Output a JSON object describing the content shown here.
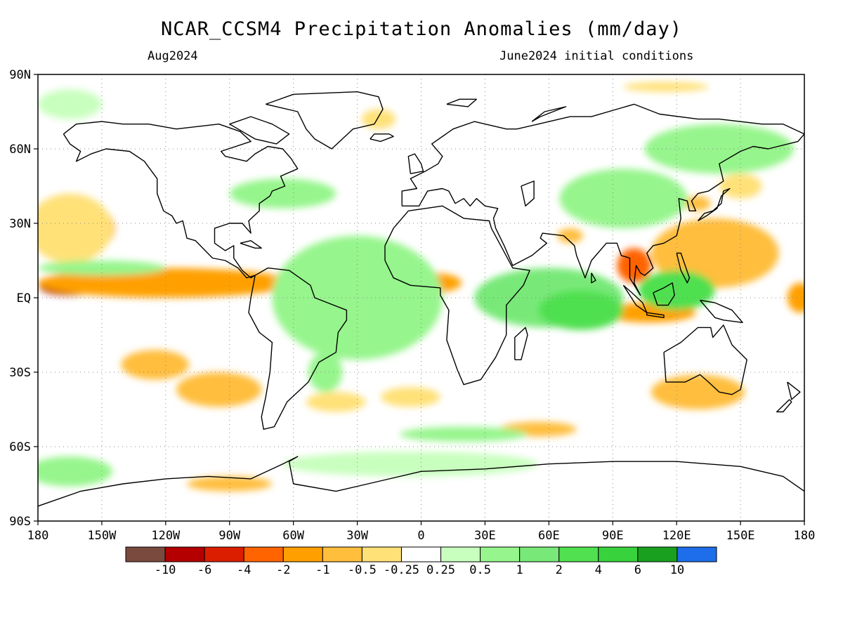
{
  "title": "NCAR_CCSM4 Precipitation Anomalies (mm/day)",
  "subtitle_left": "Aug2024",
  "subtitle_right": "June2024 initial conditions",
  "map": {
    "projection": "equirectangular",
    "lon_range": [
      -180,
      180
    ],
    "lat_range": [
      -90,
      90
    ],
    "grid": true,
    "coastlines": true,
    "lat_labels": [
      "90N",
      "60N",
      "30N",
      "EQ",
      "30S",
      "60S",
      "90S"
    ],
    "lat_values": [
      90,
      60,
      30,
      0,
      -30,
      -60,
      -90
    ],
    "lon_labels": [
      "180",
      "150W",
      "120W",
      "90W",
      "60W",
      "30W",
      "0",
      "30E",
      "60E",
      "90E",
      "120E",
      "150E",
      "180"
    ],
    "lon_values": [
      -180,
      -150,
      -120,
      -90,
      -60,
      -30,
      0,
      30,
      60,
      90,
      120,
      150,
      180
    ]
  },
  "colorbar": {
    "colors": [
      "#7a4a3f",
      "#b40000",
      "#dc1e00",
      "#ff6400",
      "#ffa000",
      "#ffbe3c",
      "#ffe178",
      "#ffffff",
      "#c8ffbe",
      "#96f58c",
      "#78e978",
      "#50e050",
      "#37d23c",
      "#19a01e",
      "#1e6eeb"
    ],
    "tick_labels": [
      "-10",
      "-6",
      "-4",
      "-2",
      "-1",
      "-0.5",
      "-0.25",
      "0.25",
      "0.5",
      "1",
      "2",
      "4",
      "6",
      "10"
    ]
  },
  "anomaly_regions": [
    {
      "lon": -140,
      "lat": 5,
      "rx": 40,
      "ry": 3.5,
      "cls": 2
    },
    {
      "lon": -165,
      "lat": 4,
      "rx": 14,
      "ry": 3,
      "cls": 1
    },
    {
      "lon": -95,
      "lat": 6,
      "rx": 22,
      "ry": 3,
      "cls": 3
    },
    {
      "lon": -120,
      "lat": 6,
      "rx": 60,
      "ry": 6,
      "cls": 4
    },
    {
      "lon": -20,
      "lat": 10,
      "rx": 12,
      "ry": 3,
      "cls": 2
    },
    {
      "lon": 5,
      "lat": 6,
      "rx": 14,
      "ry": 4,
      "cls": 4
    },
    {
      "lon": -35,
      "lat": 7,
      "rx": 22,
      "ry": 5,
      "cls": 5
    },
    {
      "lon": -160,
      "lat": 28,
      "rx": 16,
      "ry": 10,
      "cls": 4
    },
    {
      "lon": -165,
      "lat": 28,
      "rx": 20,
      "ry": 14,
      "cls": 6
    },
    {
      "lon": -125,
      "lat": -27,
      "rx": 16,
      "ry": 6,
      "cls": 5
    },
    {
      "lon": -95,
      "lat": -37,
      "rx": 20,
      "ry": 7,
      "cls": 5
    },
    {
      "lon": -60,
      "lat": 10,
      "rx": 6,
      "ry": 4,
      "cls": 3
    },
    {
      "lon": -60,
      "lat": 5,
      "rx": 10,
      "ry": 7,
      "cls": 5
    },
    {
      "lon": -40,
      "lat": -42,
      "rx": 14,
      "ry": 4,
      "cls": 6
    },
    {
      "lon": -5,
      "lat": -40,
      "rx": 14,
      "ry": 4,
      "cls": 6
    },
    {
      "lon": 55,
      "lat": -53,
      "rx": 18,
      "ry": 3,
      "cls": 5
    },
    {
      "lon": 137,
      "lat": 17,
      "rx": 22,
      "ry": 10,
      "cls": 4
    },
    {
      "lon": 138,
      "lat": 18,
      "rx": 30,
      "ry": 14,
      "cls": 5
    },
    {
      "lon": 100,
      "lat": 13,
      "rx": 8,
      "ry": 7,
      "cls": 3
    },
    {
      "lon": 107,
      "lat": -6,
      "rx": 22,
      "ry": 4,
      "cls": 4
    },
    {
      "lon": 130,
      "lat": -38,
      "rx": 22,
      "ry": 7,
      "cls": 5
    },
    {
      "lon": 178,
      "lat": 0,
      "rx": 6,
      "ry": 6,
      "cls": 4
    },
    {
      "lon": 70,
      "lat": 25,
      "rx": 6,
      "ry": 3,
      "cls": 5
    },
    {
      "lon": 150,
      "lat": 45,
      "rx": 10,
      "ry": 5,
      "cls": 6
    },
    {
      "lon": 130,
      "lat": 38,
      "rx": 6,
      "ry": 3,
      "cls": 5
    },
    {
      "lon": -90,
      "lat": -75,
      "rx": 20,
      "ry": 3,
      "cls": 5
    },
    {
      "lon": -20,
      "lat": 72,
      "rx": 8,
      "ry": 4,
      "cls": 6
    },
    {
      "lon": 115,
      "lat": 85,
      "rx": 20,
      "ry": 2,
      "cls": 6
    },
    {
      "lon": -30,
      "lat": 0,
      "rx": 40,
      "ry": 25,
      "cls": 9
    },
    {
      "lon": 60,
      "lat": 0,
      "rx": 35,
      "ry": 12,
      "cls": 10
    },
    {
      "lon": 75,
      "lat": -5,
      "rx": 20,
      "ry": 8,
      "cls": 11
    },
    {
      "lon": 120,
      "lat": 3,
      "rx": 18,
      "ry": 8,
      "cls": 11
    },
    {
      "lon": 95,
      "lat": 40,
      "rx": 30,
      "ry": 12,
      "cls": 9
    },
    {
      "lon": 140,
      "lat": 60,
      "rx": 35,
      "ry": 10,
      "cls": 9
    },
    {
      "lon": -165,
      "lat": -70,
      "rx": 20,
      "ry": 6,
      "cls": 9
    },
    {
      "lon": -65,
      "lat": 42,
      "rx": 25,
      "ry": 6,
      "cls": 9
    },
    {
      "lon": -165,
      "lat": 78,
      "rx": 15,
      "ry": 6,
      "cls": 8
    },
    {
      "lon": -5,
      "lat": -67,
      "rx": 60,
      "ry": 5,
      "cls": 8
    },
    {
      "lon": -45,
      "lat": -30,
      "rx": 8,
      "ry": 8,
      "cls": 9
    },
    {
      "lon": -150,
      "lat": 12,
      "rx": 30,
      "ry": 3,
      "cls": 9
    },
    {
      "lon": 20,
      "lat": -55,
      "rx": 30,
      "ry": 3,
      "cls": 9
    }
  ],
  "coastlines": {
    "north_america": [
      [
        -168,
        66
      ],
      [
        -162,
        70
      ],
      [
        -150,
        71
      ],
      [
        -140,
        70
      ],
      [
        -128,
        70
      ],
      [
        -115,
        68
      ],
      [
        -95,
        70
      ],
      [
        -85,
        67
      ],
      [
        -80,
        63
      ],
      [
        -94,
        59
      ],
      [
        -92,
        57
      ],
      [
        -82,
        55
      ],
      [
        -78,
        58
      ],
      [
        -72,
        61
      ],
      [
        -65,
        60
      ],
      [
        -61,
        56
      ],
      [
        -58,
        52
      ],
      [
        -66,
        49
      ],
      [
        -64,
        45
      ],
      [
        -70,
        43
      ],
      [
        -71,
        41
      ],
      [
        -76,
        38
      ],
      [
        -76,
        35
      ],
      [
        -81,
        31
      ],
      [
        -80,
        26
      ],
      [
        -82,
        28
      ],
      [
        -84,
        30
      ],
      [
        -90,
        30
      ],
      [
        -97,
        28
      ],
      [
        -97,
        22
      ],
      [
        -92,
        19
      ],
      [
        -88,
        21
      ],
      [
        -88,
        16
      ],
      [
        -84,
        11
      ],
      [
        -80,
        8
      ],
      [
        -78,
        9
      ],
      [
        -82,
        8
      ],
      [
        -86,
        12
      ],
      [
        -92,
        15
      ],
      [
        -98,
        16
      ],
      [
        -106,
        23
      ],
      [
        -110,
        24
      ],
      [
        -112,
        31
      ],
      [
        -115,
        30
      ],
      [
        -117,
        33
      ],
      [
        -121,
        35
      ],
      [
        -124,
        42
      ],
      [
        -124,
        48
      ],
      [
        -130,
        55
      ],
      [
        -137,
        59
      ],
      [
        -148,
        60
      ],
      [
        -155,
        58
      ],
      [
        -162,
        55
      ],
      [
        -160,
        59
      ],
      [
        -165,
        62
      ],
      [
        -168,
        66
      ]
    ],
    "greenland": [
      [
        -73,
        78
      ],
      [
        -60,
        82
      ],
      [
        -30,
        83
      ],
      [
        -20,
        81
      ],
      [
        -18,
        76
      ],
      [
        -22,
        70
      ],
      [
        -32,
        68
      ],
      [
        -42,
        60
      ],
      [
        -50,
        64
      ],
      [
        -54,
        68
      ],
      [
        -58,
        75
      ],
      [
        -73,
        78
      ]
    ],
    "south_america": [
      [
        -78,
        9
      ],
      [
        -72,
        12
      ],
      [
        -62,
        11
      ],
      [
        -52,
        5
      ],
      [
        -50,
        0
      ],
      [
        -44,
        -2
      ],
      [
        -35,
        -5
      ],
      [
        -35,
        -9
      ],
      [
        -39,
        -14
      ],
      [
        -40,
        -22
      ],
      [
        -48,
        -26
      ],
      [
        -53,
        -34
      ],
      [
        -58,
        -38
      ],
      [
        -63,
        -42
      ],
      [
        -66,
        -47
      ],
      [
        -69,
        -52
      ],
      [
        -74,
        -53
      ],
      [
        -75,
        -48
      ],
      [
        -73,
        -40
      ],
      [
        -71,
        -30
      ],
      [
        -70,
        -18
      ],
      [
        -76,
        -14
      ],
      [
        -81,
        -6
      ],
      [
        -80,
        0
      ],
      [
        -78,
        9
      ]
    ],
    "africa": [
      [
        -17,
        15
      ],
      [
        -17,
        21
      ],
      [
        -13,
        28
      ],
      [
        -6,
        35
      ],
      [
        10,
        37
      ],
      [
        20,
        32
      ],
      [
        32,
        31
      ],
      [
        33,
        28
      ],
      [
        38,
        20
      ],
      [
        43,
        12
      ],
      [
        51,
        11
      ],
      [
        48,
        5
      ],
      [
        40,
        -3
      ],
      [
        40,
        -15
      ],
      [
        35,
        -24
      ],
      [
        28,
        -33
      ],
      [
        20,
        -35
      ],
      [
        17,
        -29
      ],
      [
        12,
        -17
      ],
      [
        13,
        -5
      ],
      [
        9,
        1
      ],
      [
        9,
        4
      ],
      [
        -5,
        5
      ],
      [
        -13,
        8
      ],
      [
        -17,
        15
      ]
    ],
    "eurasia": [
      [
        -9,
        37
      ],
      [
        -9,
        43
      ],
      [
        -2,
        44
      ],
      [
        -5,
        48
      ],
      [
        2,
        51
      ],
      [
        8,
        54
      ],
      [
        10,
        57
      ],
      [
        5,
        62
      ],
      [
        15,
        68
      ],
      [
        25,
        71
      ],
      [
        40,
        68
      ],
      [
        45,
        68
      ],
      [
        55,
        70
      ],
      [
        70,
        73
      ],
      [
        80,
        73
      ],
      [
        100,
        78
      ],
      [
        112,
        74
      ],
      [
        130,
        72
      ],
      [
        140,
        72
      ],
      [
        160,
        70
      ],
      [
        170,
        70
      ],
      [
        180,
        66
      ],
      [
        177,
        63
      ],
      [
        163,
        60
      ],
      [
        156,
        61
      ],
      [
        150,
        59
      ],
      [
        140,
        54
      ],
      [
        142,
        47
      ],
      [
        135,
        43
      ],
      [
        130,
        42
      ],
      [
        127,
        39
      ],
      [
        129,
        35
      ],
      [
        126,
        35
      ],
      [
        125,
        39
      ],
      [
        121,
        40
      ],
      [
        122,
        32
      ],
      [
        120,
        25
      ],
      [
        114,
        22
      ],
      [
        109,
        21
      ],
      [
        106,
        18
      ],
      [
        109,
        12
      ],
      [
        105,
        9
      ],
      [
        103,
        10
      ],
      [
        101,
        13
      ],
      [
        100,
        6
      ],
      [
        103,
        1
      ],
      [
        98,
        8
      ],
      [
        98,
        16
      ],
      [
        94,
        17
      ],
      [
        92,
        22
      ],
      [
        87,
        22
      ],
      [
        80,
        15
      ],
      [
        77,
        8
      ],
      [
        73,
        17
      ],
      [
        72,
        21
      ],
      [
        67,
        25
      ],
      [
        57,
        26
      ],
      [
        56,
        24
      ],
      [
        59,
        22
      ],
      [
        52,
        17
      ],
      [
        43,
        13
      ],
      [
        39,
        21
      ],
      [
        35,
        28
      ],
      [
        34,
        32
      ],
      [
        36,
        36
      ],
      [
        30,
        37
      ],
      [
        26,
        40
      ],
      [
        23,
        37
      ],
      [
        20,
        40
      ],
      [
        16,
        38
      ],
      [
        13,
        43
      ],
      [
        10,
        44
      ],
      [
        3,
        43
      ],
      [
        -1,
        37
      ],
      [
        -9,
        37
      ]
    ],
    "australia": [
      [
        114,
        -22
      ],
      [
        122,
        -18
      ],
      [
        130,
        -12
      ],
      [
        136,
        -12
      ],
      [
        137,
        -16
      ],
      [
        142,
        -11
      ],
      [
        146,
        -19
      ],
      [
        153,
        -25
      ],
      [
        150,
        -37
      ],
      [
        146,
        -39
      ],
      [
        140,
        -38
      ],
      [
        135,
        -34
      ],
      [
        131,
        -31
      ],
      [
        124,
        -34
      ],
      [
        115,
        -34
      ],
      [
        114,
        -22
      ]
    ],
    "antarctica": [
      [
        -180,
        -84
      ],
      [
        -160,
        -78
      ],
      [
        -140,
        -75
      ],
      [
        -120,
        -73
      ],
      [
        -100,
        -72
      ],
      [
        -80,
        -73
      ],
      [
        -65,
        -67
      ],
      [
        -58,
        -64
      ],
      [
        -62,
        -66
      ],
      [
        -60,
        -75
      ],
      [
        -40,
        -78
      ],
      [
        -20,
        -74
      ],
      [
        0,
        -70
      ],
      [
        30,
        -69
      ],
      [
        60,
        -67
      ],
      [
        90,
        -66
      ],
      [
        120,
        -66
      ],
      [
        150,
        -68
      ],
      [
        170,
        -72
      ],
      [
        180,
        -78
      ]
    ],
    "madagascar": [
      [
        44,
        -25
      ],
      [
        47,
        -25
      ],
      [
        50,
        -15
      ],
      [
        49,
        -12
      ],
      [
        44,
        -16
      ],
      [
        44,
        -25
      ]
    ],
    "uk": [
      [
        -5,
        50
      ],
      [
        1,
        51
      ],
      [
        0,
        54
      ],
      [
        -3,
        58
      ],
      [
        -6,
        57
      ],
      [
        -5,
        50
      ]
    ],
    "japan": [
      [
        130,
        31
      ],
      [
        133,
        34
      ],
      [
        137,
        35
      ],
      [
        141,
        38
      ],
      [
        142,
        43
      ],
      [
        145,
        44
      ],
      [
        141,
        41
      ],
      [
        139,
        36
      ],
      [
        134,
        33
      ],
      [
        130,
        31
      ]
    ],
    "borneo": [
      [
        109,
        2
      ],
      [
        114,
        4
      ],
      [
        118,
        6
      ],
      [
        119,
        1
      ],
      [
        116,
        -3
      ],
      [
        111,
        -3
      ],
      [
        109,
        2
      ]
    ],
    "sumatra": [
      [
        95,
        5
      ],
      [
        99,
        2
      ],
      [
        104,
        -2
      ],
      [
        106,
        -6
      ],
      [
        101,
        -3
      ],
      [
        95,
        5
      ]
    ],
    "new_guinea": [
      [
        131,
        -1
      ],
      [
        138,
        -2
      ],
      [
        146,
        -5
      ],
      [
        151,
        -10
      ],
      [
        142,
        -9
      ],
      [
        138,
        -8
      ],
      [
        131,
        -1
      ]
    ],
    "new_zealand": [
      [
        172,
        -34
      ],
      [
        178,
        -38
      ],
      [
        174,
        -41
      ],
      [
        172,
        -34
      ]
    ],
    "nz_south": [
      [
        173,
        -41
      ],
      [
        174,
        -42
      ],
      [
        170,
        -46
      ],
      [
        167,
        -46
      ],
      [
        173,
        -41
      ]
    ],
    "iceland": [
      [
        -24,
        64
      ],
      [
        -22,
        66
      ],
      [
        -15,
        66
      ],
      [
        -13,
        65
      ],
      [
        -19,
        63
      ],
      [
        -24,
        64
      ]
    ],
    "philippines": [
      [
        120,
        18
      ],
      [
        122,
        18
      ],
      [
        126,
        8
      ],
      [
        125,
        6
      ],
      [
        122,
        11
      ],
      [
        120,
        18
      ]
    ],
    "sri_lanka": [
      [
        80,
        10
      ],
      [
        82,
        7
      ],
      [
        80,
        6
      ],
      [
        80,
        10
      ]
    ],
    "cuba": [
      [
        -85,
        22
      ],
      [
        -80,
        23
      ],
      [
        -75,
        20
      ],
      [
        -78,
        20
      ],
      [
        -85,
        22
      ]
    ],
    "novaya_zemlya": [
      [
        52,
        71
      ],
      [
        58,
        75
      ],
      [
        68,
        77
      ],
      [
        56,
        73
      ],
      [
        52,
        71
      ]
    ],
    "svalbard": [
      [
        12,
        78
      ],
      [
        18,
        80
      ],
      [
        26,
        80
      ],
      [
        22,
        77
      ],
      [
        12,
        78
      ]
    ],
    "caspian": [
      [
        47,
        45
      ],
      [
        53,
        47
      ],
      [
        53,
        40
      ],
      [
        49,
        37
      ],
      [
        47,
        45
      ]
    ],
    "java": [
      [
        106,
        -6
      ],
      [
        114,
        -7
      ],
      [
        114,
        -8
      ],
      [
        106,
        -7
      ],
      [
        106,
        -6
      ]
    ],
    "baffin": [
      [
        -80,
        73
      ],
      [
        -70,
        70
      ],
      [
        -62,
        66
      ],
      [
        -68,
        62
      ],
      [
        -78,
        64
      ],
      [
        -90,
        70
      ],
      [
        -80,
        73
      ]
    ]
  }
}
